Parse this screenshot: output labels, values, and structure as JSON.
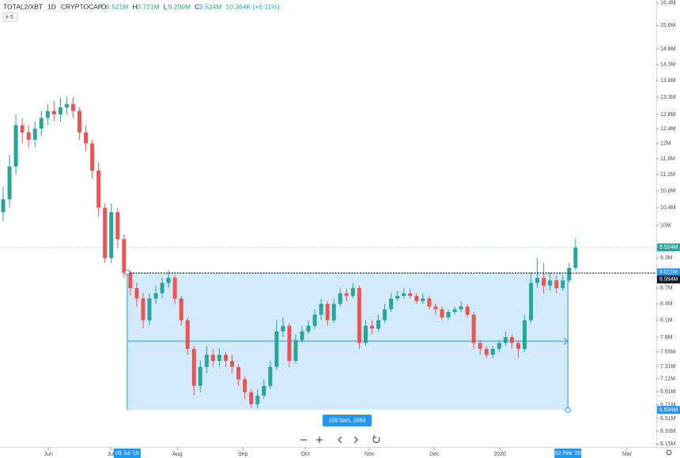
{
  "header": {
    "symbol": "TOTAL2/XBT",
    "interval": "1D",
    "exchange": "CRYPTOCAP",
    "ohlc": [
      {
        "key": "O",
        "value": "9.521M"
      },
      {
        "key": "H",
        "value": "9.721M"
      },
      {
        "key": "L",
        "value": "9.299M"
      },
      {
        "key": "C",
        "value": "9.524M"
      }
    ],
    "change": "10.364K (+0.11%)",
    "indicator_count": "5"
  },
  "chart_data": {
    "type": "candlestick",
    "log_scale": true,
    "up_color": "#26a69a",
    "down_color": "#ef5350",
    "open": [
      10.3,
      10.6,
      11.4,
      12.5,
      12.3,
      12.1,
      12.4,
      12.7,
      12.9,
      12.8,
      13.0,
      13.1,
      12.9,
      12.3,
      12.0,
      11.3,
      10.4,
      9.3,
      10.3,
      9.7,
      9.0,
      8.7,
      8.5,
      8.1,
      8.5,
      8.6,
      8.8,
      8.9,
      8.5,
      8.1,
      7.6,
      7.0,
      7.3,
      7.5,
      7.4,
      7.5,
      7.4,
      7.3,
      7.1,
      6.9,
      6.72,
      6.85,
      7.0,
      7.3,
      7.9,
      8.0,
      7.4,
      7.75,
      7.9,
      8.0,
      8.2,
      8.4,
      8.1,
      8.4,
      8.6,
      8.55,
      8.7,
      7.7,
      8.0,
      7.95,
      8.1,
      8.3,
      8.5,
      8.55,
      8.6,
      8.55,
      8.45,
      8.5,
      8.35,
      8.3,
      8.15,
      8.25,
      8.3,
      8.35,
      8.2,
      7.7,
      7.6,
      7.5,
      7.6,
      7.7,
      7.8,
      7.7,
      7.6,
      8.1,
      8.8,
      8.9,
      8.75,
      8.85,
      8.7,
      8.85,
      9.1
    ],
    "high": [
      10.9,
      11.7,
      12.8,
      12.7,
      12.5,
      12.6,
      12.9,
      13.1,
      13.2,
      13.3,
      13.3,
      13.3,
      13.0,
      12.5,
      12.1,
      11.5,
      10.5,
      10.5,
      10.4,
      9.8,
      9.05,
      8.8,
      8.6,
      8.6,
      8.75,
      8.9,
      9.05,
      8.95,
      8.55,
      8.15,
      7.65,
      7.4,
      7.65,
      7.6,
      7.6,
      7.55,
      7.5,
      7.35,
      7.15,
      6.95,
      6.95,
      7.1,
      7.4,
      8.1,
      8.15,
      8.05,
      7.85,
      8.0,
      8.1,
      8.3,
      8.5,
      8.45,
      8.5,
      8.7,
      8.7,
      8.8,
      8.75,
      8.1,
      8.1,
      8.2,
      8.4,
      8.6,
      8.65,
      8.7,
      8.7,
      8.6,
      8.6,
      8.55,
      8.4,
      8.35,
      8.3,
      8.35,
      8.45,
      8.4,
      8.25,
      7.75,
      7.65,
      7.65,
      7.75,
      7.9,
      7.85,
      7.75,
      8.2,
      9.0,
      9.3,
      9.2,
      9.0,
      8.95,
      8.95,
      9.2,
      9.72
    ],
    "low": [
      10.1,
      10.4,
      11.2,
      12.0,
      11.9,
      11.9,
      12.2,
      12.5,
      12.6,
      12.6,
      12.8,
      12.7,
      12.1,
      11.8,
      11.1,
      10.2,
      9.2,
      9.2,
      9.5,
      8.9,
      8.55,
      8.35,
      7.95,
      8.0,
      8.4,
      8.5,
      8.7,
      8.4,
      8.0,
      7.5,
      6.85,
      6.9,
      7.2,
      7.3,
      7.3,
      7.3,
      7.2,
      7.0,
      6.8,
      6.66,
      6.66,
      6.8,
      6.95,
      7.25,
      7.8,
      7.3,
      7.35,
      7.7,
      7.85,
      7.95,
      8.1,
      8.0,
      8.05,
      8.35,
      8.45,
      8.5,
      7.6,
      7.65,
      7.85,
      7.9,
      8.05,
      8.25,
      8.45,
      8.5,
      8.5,
      8.4,
      8.4,
      8.3,
      8.2,
      8.1,
      8.1,
      8.2,
      8.25,
      8.15,
      7.6,
      7.5,
      7.45,
      7.45,
      7.55,
      7.65,
      7.6,
      7.45,
      7.55,
      8.05,
      8.7,
      8.6,
      8.65,
      8.6,
      8.65,
      8.8,
      9.05
    ],
    "close": [
      10.6,
      11.4,
      12.5,
      12.3,
      12.1,
      12.4,
      12.7,
      12.9,
      12.8,
      13.0,
      13.1,
      12.9,
      12.3,
      12.0,
      11.3,
      10.4,
      9.3,
      10.3,
      9.7,
      9.0,
      8.7,
      8.5,
      8.1,
      8.5,
      8.6,
      8.8,
      8.9,
      8.5,
      8.1,
      7.6,
      7.0,
      7.3,
      7.5,
      7.4,
      7.5,
      7.4,
      7.3,
      7.1,
      6.9,
      6.72,
      6.85,
      7.0,
      7.3,
      7.9,
      8.0,
      7.4,
      7.75,
      7.9,
      8.0,
      8.2,
      8.4,
      8.1,
      8.4,
      8.6,
      8.55,
      8.7,
      7.7,
      8.0,
      7.95,
      8.1,
      8.3,
      8.5,
      8.55,
      8.6,
      8.55,
      8.45,
      8.5,
      8.35,
      8.3,
      8.15,
      8.25,
      8.3,
      8.35,
      8.2,
      7.7,
      7.6,
      7.5,
      7.6,
      7.7,
      7.8,
      7.7,
      7.6,
      8.1,
      8.8,
      8.9,
      8.75,
      8.85,
      8.7,
      8.85,
      9.1,
      9.52
    ],
    "xlim": [
      -0.5,
      102.7
    ],
    "xticks": [
      {
        "value": 7.1,
        "label": "Jun"
      },
      {
        "value": 16.9,
        "label": "Jul"
      },
      {
        "value": 27.4,
        "label": "Aug"
      },
      {
        "value": 37.7,
        "label": "Sep"
      },
      {
        "value": 47.5,
        "label": "Oct"
      },
      {
        "value": 57.6,
        "label": "Nov"
      },
      {
        "value": 67.8,
        "label": "Dec"
      },
      {
        "value": 78.1,
        "label": "2020"
      },
      {
        "value": 98.1,
        "label": "Mar"
      }
    ],
    "ylim": [
      6.1,
      16.51
    ],
    "yticks": [
      {
        "value": 16.4,
        "label": "16.4M"
      },
      {
        "value": 15.6,
        "label": "15.6M"
      },
      {
        "value": 14.8,
        "label": "14.8M"
      },
      {
        "value": 14.3,
        "label": "14.3M"
      },
      {
        "value": 13.8,
        "label": "13.8M"
      },
      {
        "value": 13.3,
        "label": "13.3M"
      },
      {
        "value": 12.8,
        "label": "12.8M"
      },
      {
        "value": 12.4,
        "label": "12.4M"
      },
      {
        "value": 12,
        "label": "12M"
      },
      {
        "value": 11.6,
        "label": "11.6M"
      },
      {
        "value": 11.2,
        "label": "11.2M"
      },
      {
        "value": 10.8,
        "label": "10.8M"
      },
      {
        "value": 10.4,
        "label": "10.4M"
      },
      {
        "value": 10,
        "label": "10M"
      },
      {
        "value": 9.3,
        "label": "9.3M"
      },
      {
        "value": 8.7,
        "label": "8.7M"
      },
      {
        "value": 8.4,
        "label": "8.4M"
      },
      {
        "value": 8.1,
        "label": "8.1M"
      },
      {
        "value": 7.8,
        "label": "7.8M"
      },
      {
        "value": 7.55,
        "label": "7.55M"
      },
      {
        "value": 7.31,
        "label": "7.31M"
      },
      {
        "value": 7.11,
        "label": "7.11M"
      },
      {
        "value": 6.91,
        "label": "6.91M"
      },
      {
        "value": 6.71,
        "label": "6.71M"
      },
      {
        "value": 6.51,
        "label": "6.51M"
      },
      {
        "value": 6.33,
        "label": "6.33M"
      },
      {
        "value": 6.15,
        "label": "6.15M"
      }
    ],
    "last_price": {
      "value": 9.524,
      "label": "9.524M"
    },
    "price_line": {
      "value": 8.994,
      "label": "8.994M"
    },
    "range": {
      "x": [
        {
          "value": 19.5,
          "label": "09 Jul '19"
        },
        {
          "value": 88.8,
          "label": "02 Feb '20"
        }
      ],
      "y": [
        {
          "value": 9.011,
          "label": "9.011M"
        },
        {
          "value": 6.634,
          "label": "6.634M"
        }
      ],
      "label": "208 bars, 208d"
    }
  }
}
